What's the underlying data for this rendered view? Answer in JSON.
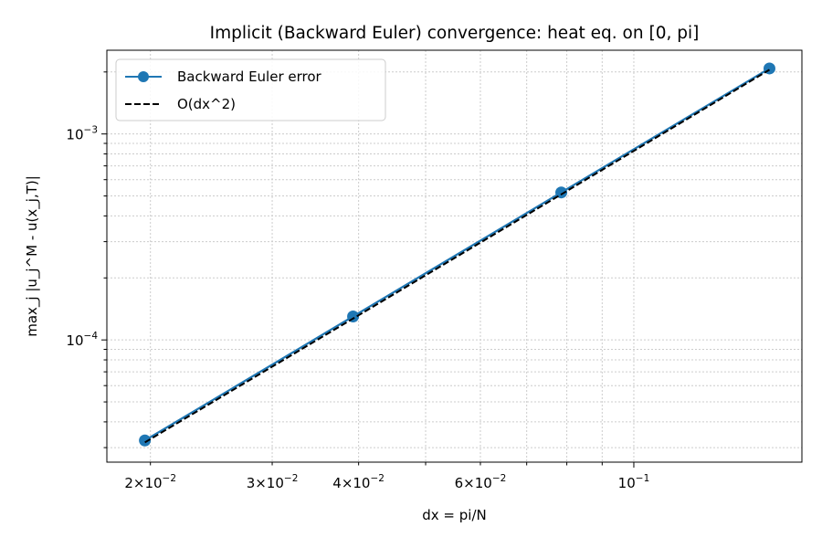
{
  "chart_data": {
    "type": "line",
    "title": "Implicit (Backward Euler) convergence: heat eq. on [0, pi]",
    "xlabel": "dx = pi/N",
    "ylabel": "max_j |u_j^M - u(x_j,T)|",
    "xscale": "log",
    "yscale": "log",
    "xlim": [
      0.0173,
      0.175
    ],
    "ylim": [
      2.55e-05,
      0.00255
    ],
    "grid": true,
    "legend_position": "top-left",
    "x": [
      0.019635,
      0.03927,
      0.07854,
      0.15708
    ],
    "series": [
      {
        "name": "Backward Euler error",
        "style": "solid",
        "marker": "circle",
        "color": "#1f77b4",
        "values": [
          3.25e-05,
          0.00013,
          0.00052,
          0.00208
        ]
      },
      {
        "name": "O(dx^2)",
        "style": "dashed",
        "marker": "none",
        "color": "#000000",
        "values": [
          3.18e-05,
          0.000127,
          0.000509,
          0.00205
        ]
      }
    ],
    "x_ticks": [
      {
        "value": 0.02,
        "mantissa": "2",
        "base": "10",
        "exp": "−2"
      },
      {
        "value": 0.03,
        "mantissa": "3",
        "base": "10",
        "exp": "−2"
      },
      {
        "value": 0.04,
        "mantissa": "4",
        "base": "10",
        "exp": "−2"
      },
      {
        "value": 0.06,
        "mantissa": "6",
        "base": "10",
        "exp": "−2"
      },
      {
        "value": 0.1,
        "mantissa": "",
        "base": "10",
        "exp": "−1"
      }
    ],
    "y_ticks": [
      {
        "value": 0.0001,
        "base": "10",
        "exp": "−4"
      },
      {
        "value": 0.001,
        "base": "10",
        "exp": "−3"
      }
    ]
  }
}
